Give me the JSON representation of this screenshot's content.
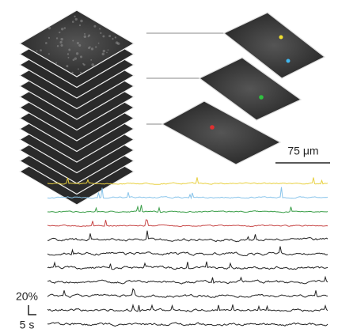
{
  "scale_bars": {
    "length": "75 μm",
    "amplitude": "20%",
    "time": "5 s"
  }
}
